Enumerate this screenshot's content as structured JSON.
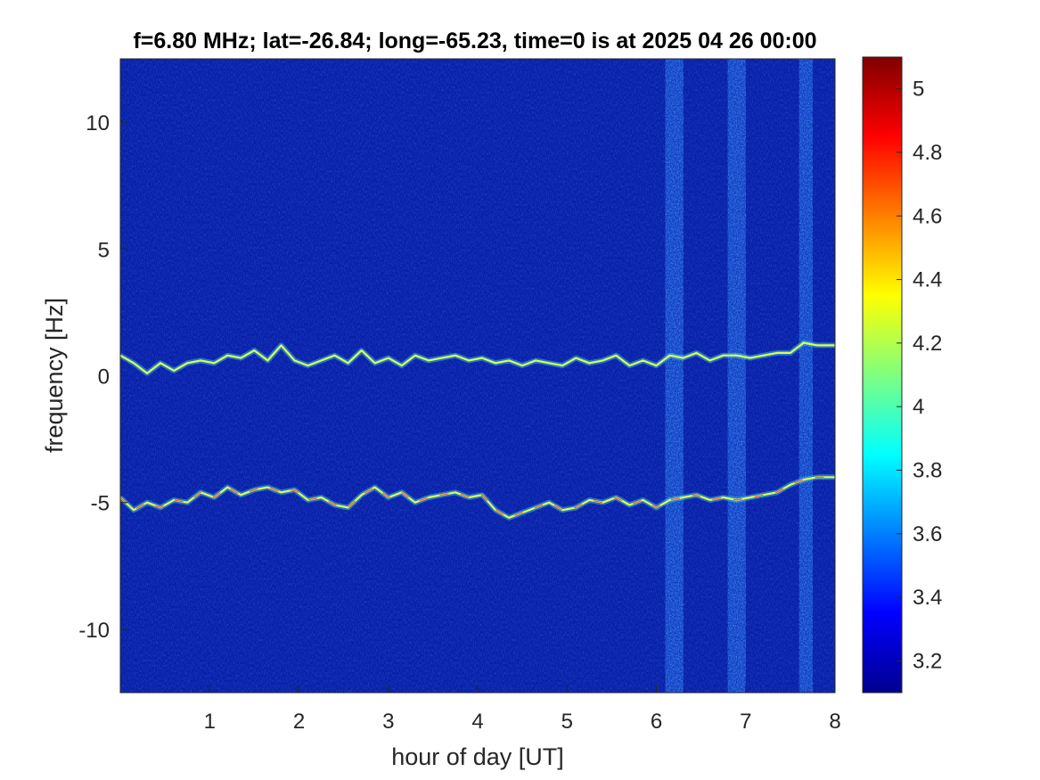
{
  "chart_data": {
    "type": "heatmap",
    "title": "f=6.80 MHz;  lat=-26.84; long=-65.23, time=0 is at 2025 04 26 00:00",
    "xlabel": "hour of day [UT]",
    "ylabel": "frequency [Hz]",
    "xlim": [
      0,
      8
    ],
    "ylim": [
      -12.5,
      12.5
    ],
    "x_ticks": [
      1,
      2,
      3,
      4,
      5,
      6,
      7,
      8
    ],
    "x_tick_labels": [
      "1",
      "2",
      "3",
      "4",
      "5",
      "6",
      "7",
      "8"
    ],
    "y_ticks": [
      10,
      5,
      0,
      -5,
      -10
    ],
    "y_tick_labels": [
      "10",
      "5",
      "0",
      "-5",
      "-10"
    ],
    "colorbar": {
      "colormap": "jet",
      "range": [
        3.1,
        5.1
      ],
      "ticks": [
        5,
        4.8,
        4.6,
        4.4,
        4.2,
        4,
        3.8,
        3.6,
        3.4,
        3.2
      ],
      "tick_labels": [
        "5",
        "4.8",
        "4.6",
        "4.4",
        "4.2",
        "4",
        "3.8",
        "3.6",
        "3.4",
        "3.2"
      ]
    },
    "grid": false,
    "noise_bands_hours": [
      [
        6.1,
        6.3
      ],
      [
        6.8,
        7.0
      ],
      [
        7.6,
        7.75
      ]
    ],
    "traces": [
      {
        "x": [
          0.0,
          0.15,
          0.3,
          0.45,
          0.6,
          0.75,
          0.9,
          1.05,
          1.2,
          1.35,
          1.5,
          1.65,
          1.8,
          1.95,
          2.1,
          2.25,
          2.4,
          2.55,
          2.7,
          2.85,
          3.0,
          3.15,
          3.3,
          3.45,
          3.6,
          3.75,
          3.9,
          4.05,
          4.2,
          4.35,
          4.5,
          4.65,
          4.8,
          4.95,
          5.1,
          5.25,
          5.4,
          5.55,
          5.7,
          5.85,
          6.0,
          6.15,
          6.3,
          6.45,
          6.6,
          6.75,
          6.9,
          7.05,
          7.2,
          7.35,
          7.5,
          7.65,
          7.8,
          8.0
        ],
        "y": [
          0.8,
          0.5,
          0.1,
          0.5,
          0.2,
          0.5,
          0.6,
          0.5,
          0.8,
          0.7,
          1.0,
          0.6,
          1.2,
          0.6,
          0.4,
          0.6,
          0.8,
          0.5,
          1.0,
          0.5,
          0.7,
          0.4,
          0.8,
          0.6,
          0.7,
          0.8,
          0.6,
          0.7,
          0.5,
          0.6,
          0.4,
          0.6,
          0.5,
          0.4,
          0.7,
          0.5,
          0.6,
          0.8,
          0.4,
          0.6,
          0.4,
          0.8,
          0.7,
          0.9,
          0.6,
          0.8,
          0.8,
          0.7,
          0.8,
          0.9,
          0.9,
          1.3,
          1.2,
          1.2
        ]
      },
      {
        "x": [
          0.0,
          0.15,
          0.3,
          0.45,
          0.6,
          0.75,
          0.9,
          1.05,
          1.2,
          1.35,
          1.5,
          1.65,
          1.8,
          1.95,
          2.1,
          2.25,
          2.4,
          2.55,
          2.7,
          2.85,
          3.0,
          3.15,
          3.3,
          3.45,
          3.6,
          3.75,
          3.9,
          4.05,
          4.2,
          4.35,
          4.5,
          4.65,
          4.8,
          4.95,
          5.1,
          5.25,
          5.4,
          5.55,
          5.7,
          5.85,
          6.0,
          6.15,
          6.3,
          6.45,
          6.6,
          6.75,
          6.9,
          7.05,
          7.2,
          7.35,
          7.5,
          7.65,
          7.8,
          8.0
        ],
        "y": [
          -4.8,
          -5.3,
          -5.0,
          -5.2,
          -4.9,
          -5.0,
          -4.6,
          -4.8,
          -4.4,
          -4.7,
          -4.5,
          -4.4,
          -4.6,
          -4.5,
          -4.9,
          -4.8,
          -5.1,
          -5.2,
          -4.7,
          -4.4,
          -4.8,
          -4.6,
          -5.0,
          -4.8,
          -4.7,
          -4.6,
          -4.8,
          -4.7,
          -5.3,
          -5.6,
          -5.4,
          -5.2,
          -5.0,
          -5.3,
          -5.2,
          -4.9,
          -5.0,
          -4.8,
          -5.1,
          -4.9,
          -5.2,
          -4.9,
          -4.8,
          -4.7,
          -4.9,
          -4.8,
          -4.9,
          -4.8,
          -4.7,
          -4.6,
          -4.3,
          -4.1,
          -4.0,
          -4.0
        ]
      }
    ]
  }
}
